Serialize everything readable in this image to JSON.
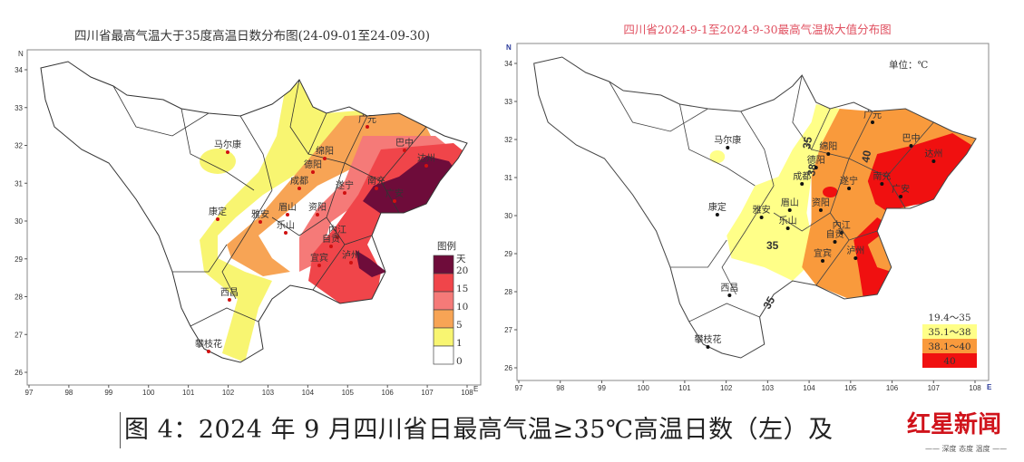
{
  "left_map": {
    "title": "四川省最高气温大于35度高温日数分布图(24-09-01至24-09-30)",
    "north_label": "N",
    "east_label": "E",
    "lon_ticks": [
      "97",
      "98",
      "99",
      "100",
      "101",
      "102",
      "103",
      "104",
      "105",
      "106",
      "107",
      "108"
    ],
    "lat_ticks": [
      "34",
      "33",
      "32",
      "31",
      "30",
      "29",
      "28",
      "27",
      "26"
    ],
    "cities": [
      "马尔康",
      "康定",
      "西昌",
      "攀枝花",
      "绵阳",
      "德阳",
      "成都",
      "雅安",
      "眉山",
      "乐山",
      "遂宁",
      "资阳",
      "内江",
      "自贡",
      "宜宾",
      "广元",
      "巴中",
      "达州",
      "南充",
      "广安",
      "泸州"
    ],
    "legend": {
      "title": "图例",
      "unit": "天",
      "labels": [
        "20",
        "15",
        "10",
        "5",
        "1",
        "0"
      ],
      "colors": [
        "#6e0c3a",
        "#f0454a",
        "#f57a78",
        "#f7a455",
        "#f8f571",
        "#ffffff"
      ]
    }
  },
  "right_map": {
    "title": "四川省2024-9-1至2024-9-30最高气温极大值分布图",
    "north_label": "N",
    "east_label": "E",
    "unit_label": "单位：℃",
    "lon_ticks": [
      "97",
      "98",
      "99",
      "100",
      "101",
      "102",
      "103",
      "104",
      "105",
      "106",
      "107",
      "108"
    ],
    "lat_ticks": [
      "34",
      "33",
      "32",
      "31",
      "30",
      "29",
      "28",
      "27",
      "26"
    ],
    "cities": [
      "马尔康",
      "康定",
      "西昌",
      "攀枝花",
      "绵阳",
      "德阳",
      "成都",
      "雅安",
      "眉山",
      "乐山",
      "遂宁",
      "资阳",
      "内江",
      "自贡",
      "宜宾",
      "广元",
      "巴中",
      "达州",
      "南充",
      "广安",
      "泸州"
    ],
    "contour_labels": [
      "35",
      "38",
      "40",
      "35",
      "35"
    ],
    "legend": {
      "labels": [
        "19.4～35",
        "35.1～38",
        "38.1～40",
        "40"
      ],
      "colors": [
        "#ffffff",
        "#ffff88",
        "#f99a3c",
        "#f01010"
      ]
    }
  },
  "caption": "图 4：2024 年 9 月四川省日最高气温≥35℃高温日数（左）及",
  "watermark": {
    "logo": "红星新闻",
    "slogan": "—— 深度 态度 温度 ——"
  }
}
